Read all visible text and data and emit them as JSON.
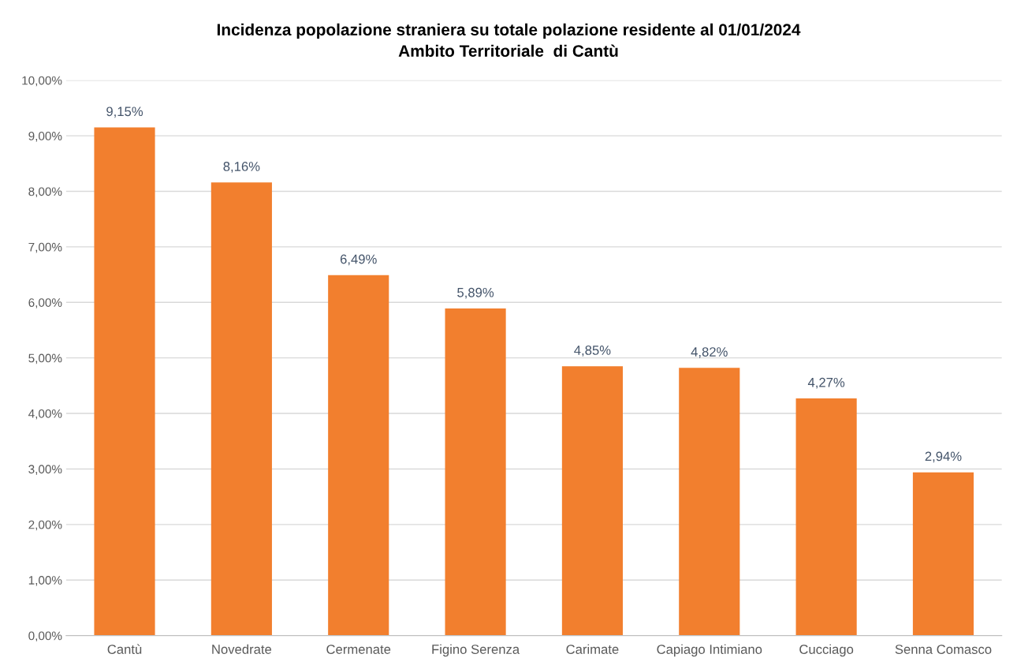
{
  "chart_data": {
    "type": "bar",
    "title": "Incidenza popolazione straniera su totale polazione residente al 01/01/2024\nAmbito Territoriale  di Cantù",
    "categories": [
      "Cantù",
      "Novedrate",
      "Cermenate",
      "Figino Serenza",
      "Carimate",
      "Capiago Intimiano",
      "Cucciago",
      "Senna Comasco"
    ],
    "values": [
      9.15,
      8.16,
      6.49,
      5.89,
      4.85,
      4.82,
      4.27,
      2.94
    ],
    "value_labels": [
      "9,15%",
      "8,16%",
      "6,49%",
      "5,89%",
      "4,85%",
      "4,82%",
      "4,27%",
      "2,94%"
    ],
    "color": "#f27f2e",
    "ylim": [
      0,
      10
    ],
    "yticks": [
      {
        "value": 0,
        "label": "0,00%"
      },
      {
        "value": 1,
        "label": "1,00%"
      },
      {
        "value": 2,
        "label": "2,00%"
      },
      {
        "value": 3,
        "label": "3,00%"
      },
      {
        "value": 4,
        "label": "4,00%"
      },
      {
        "value": 5,
        "label": "5,00%"
      },
      {
        "value": 6,
        "label": "6,00%"
      },
      {
        "value": 7,
        "label": "7,00%"
      },
      {
        "value": 8,
        "label": "8,00%"
      },
      {
        "value": 9,
        "label": "9,00%"
      },
      {
        "value": 10,
        "label": "10,00%"
      }
    ],
    "grid": "y"
  }
}
